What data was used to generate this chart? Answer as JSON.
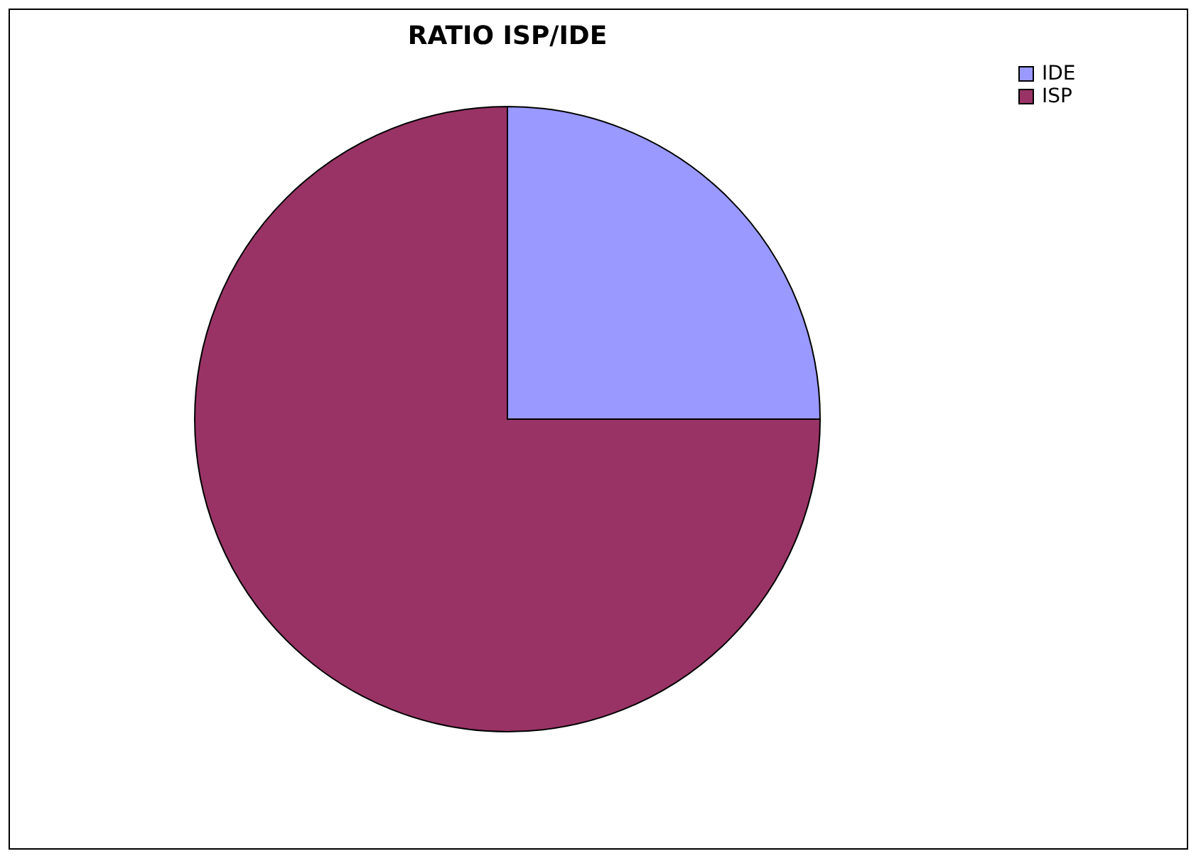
{
  "chart_data": {
    "type": "pie",
    "title": "RATIO ISP/IDE",
    "categories": [
      "IDE",
      "ISP"
    ],
    "values": [
      25,
      75
    ],
    "colors": [
      "#9999ff",
      "#993366"
    ],
    "legend": "right"
  }
}
